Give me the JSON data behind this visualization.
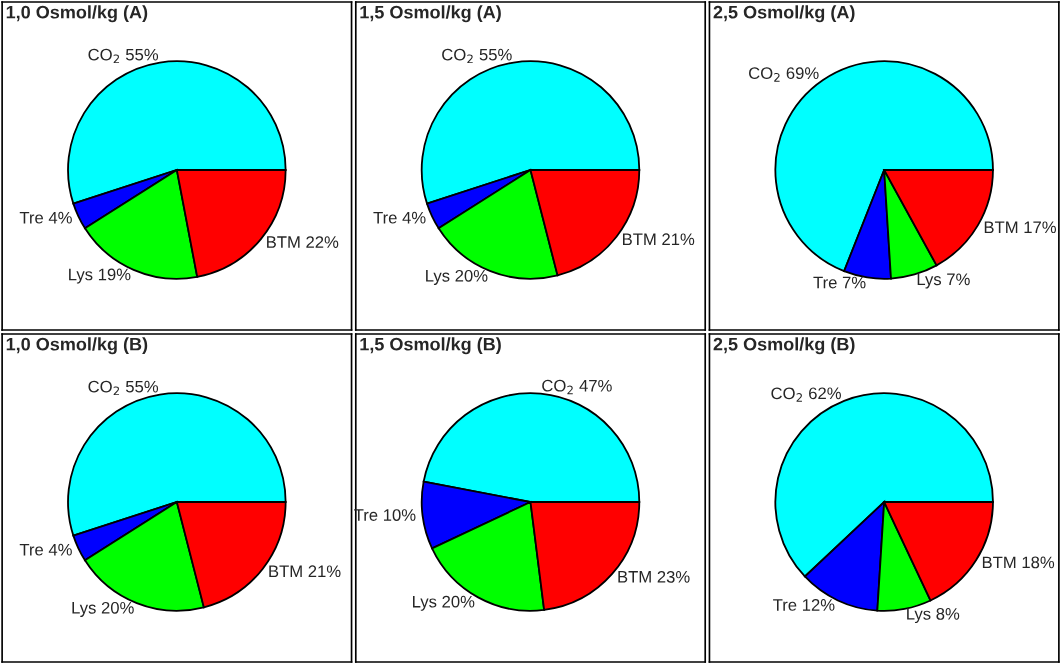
{
  "chart_data": [
    {
      "type": "pie",
      "title": "1,0 Osmol/kg (A)",
      "categories": [
        "CO$_{2}$",
        "Tre",
        "Lys",
        "BTM"
      ],
      "values": [
        55,
        4,
        19,
        22
      ],
      "value_labels": [
        "55%",
        "4%",
        "19%",
        "22%"
      ],
      "colors": [
        "#00ffff",
        "#0000ff",
        "#00ff00",
        "#ff0000"
      ]
    },
    {
      "type": "pie",
      "title": "1,5 Osmol/kg (A)",
      "categories": [
        "CO$_{2}$",
        "Tre",
        "Lys",
        "BTM"
      ],
      "values": [
        55,
        4,
        20,
        21
      ],
      "value_labels": [
        "55%",
        "4%",
        "20%",
        "21%"
      ],
      "colors": [
        "#00ffff",
        "#0000ff",
        "#00ff00",
        "#ff0000"
      ]
    },
    {
      "type": "pie",
      "title": "2,5 Osmol/kg (A)",
      "categories": [
        "CO$_{2}$",
        "Tre",
        "Lys",
        "BTM"
      ],
      "values": [
        69,
        7,
        7,
        17
      ],
      "value_labels": [
        "69%",
        "7%",
        "7%",
        "17%"
      ],
      "colors": [
        "#00ffff",
        "#0000ff",
        "#00ff00",
        "#ff0000"
      ]
    },
    {
      "type": "pie",
      "title": "1,0 Osmol/kg (B)",
      "categories": [
        "CO$_{2}$",
        "Tre",
        "Lys",
        "BTM"
      ],
      "values": [
        55,
        4,
        20,
        21
      ],
      "value_labels": [
        "55%",
        "4%",
        "20%",
        "21%"
      ],
      "colors": [
        "#00ffff",
        "#0000ff",
        "#00ff00",
        "#ff0000"
      ]
    },
    {
      "type": "pie",
      "title": "1,5 Osmol/kg (B)",
      "categories": [
        "CO$_{2}$",
        "Tre",
        "Lys",
        "BTM"
      ],
      "values": [
        47,
        10,
        20,
        23
      ],
      "value_labels": [
        "47%",
        "10%",
        "20%",
        "23%"
      ],
      "colors": [
        "#00ffff",
        "#0000ff",
        "#00ff00",
        "#ff0000"
      ]
    },
    {
      "type": "pie",
      "title": "2,5 Osmol/kg (B)",
      "categories": [
        "CO$_{2}$",
        "Tre",
        "Lys",
        "BTM"
      ],
      "values": [
        62,
        12,
        8,
        18
      ],
      "value_labels": [
        "62%",
        "12%",
        "8%",
        "18%"
      ],
      "colors": [
        "#00ffff",
        "#0000ff",
        "#00ff00",
        "#ff0000"
      ]
    }
  ]
}
